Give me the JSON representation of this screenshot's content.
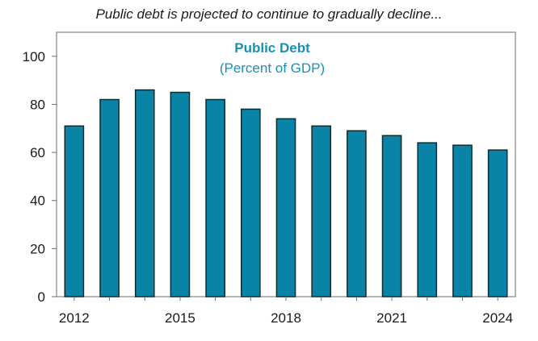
{
  "caption": "Public debt is projected to continue to gradually decline...",
  "chart_data": {
    "type": "bar",
    "title": "Public Debt",
    "subtitle": "(Percent of GDP)",
    "xlabel": "",
    "ylabel": "",
    "categories": [
      "2012",
      "2013",
      "2014",
      "2015",
      "2016",
      "2017",
      "2018",
      "2019",
      "2020",
      "2021",
      "2022",
      "2023",
      "2024"
    ],
    "values": [
      71,
      82,
      86,
      85,
      82,
      78,
      74,
      71,
      69,
      67,
      64,
      63,
      61
    ],
    "x_tick_labels": [
      "2012",
      "2015",
      "2018",
      "2021",
      "2024"
    ],
    "y_ticks": [
      0,
      20,
      40,
      60,
      80,
      100
    ],
    "ylim": [
      0,
      110
    ],
    "grid": false,
    "colors": {
      "bar_fill": "#0a84a6",
      "bar_stroke": "#0b2b33",
      "title": "#1a8fb5",
      "axis": "#6b6b6b"
    }
  }
}
